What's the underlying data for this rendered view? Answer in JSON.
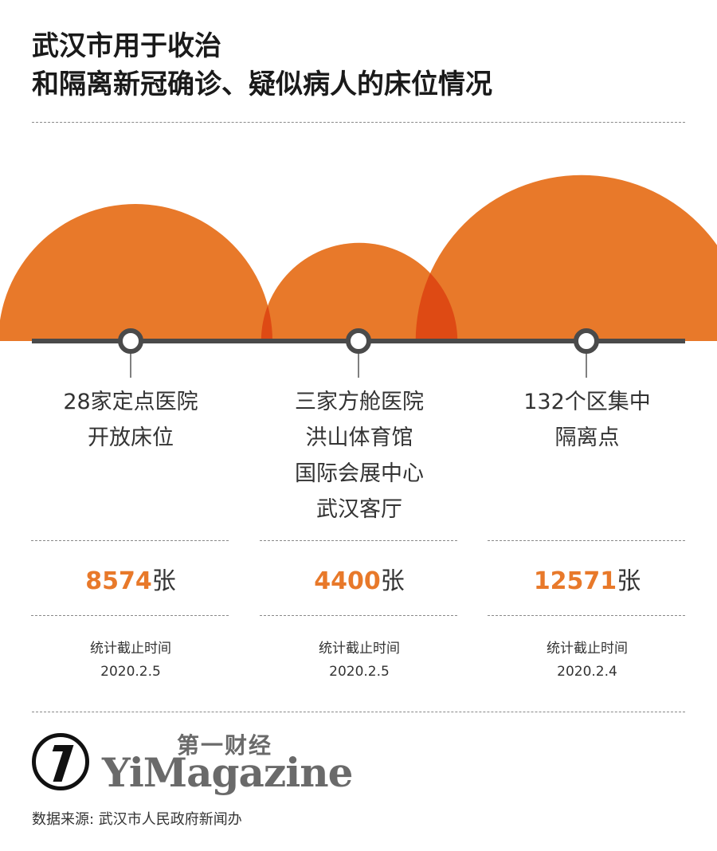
{
  "title": {
    "line1": "武汉市用于收治",
    "line2": "和隔离新冠确诊、疑似病人的床位情况"
  },
  "chart_data": {
    "type": "bubble",
    "unit": "张",
    "colors": {
      "bubble": "#e8792a",
      "overlap": "#de4a14",
      "axis": "#4a4a4a"
    },
    "items": [
      {
        "label_lines": [
          "28家定点医院",
          "开放床位"
        ],
        "value": 8574,
        "value_text": "8574",
        "note_label": "统计截止时间",
        "note_date": "2020.2.5"
      },
      {
        "label_lines": [
          "三家方舱医院",
          "洪山体育馆",
          "国际会展中心",
          "武汉客厅"
        ],
        "value": 4400,
        "value_text": "4400",
        "note_label": "统计截止时间",
        "note_date": "2020.2.5"
      },
      {
        "label_lines": [
          "132个区集中",
          "隔离点"
        ],
        "value": 12571,
        "value_text": "12571",
        "note_label": "统计截止时间",
        "note_date": "2020.2.4"
      }
    ]
  },
  "brand": {
    "cn": "第一财经",
    "en": "YiMagazine"
  },
  "source": "数据来源: 武汉市人民政府新闻办"
}
